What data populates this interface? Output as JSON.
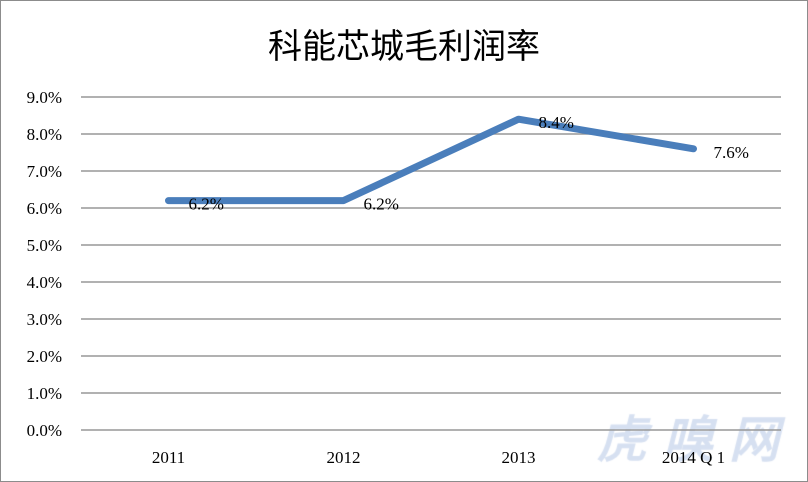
{
  "chart_data": {
    "type": "line",
    "title": "科能芯城毛利润率",
    "categories": [
      "2011",
      "2012",
      "2013",
      "2014Q1"
    ],
    "category_labels": [
      "2011",
      "2012",
      "2013",
      "2014 Q 1"
    ],
    "series": [
      {
        "values": [
          6.2,
          6.2,
          8.4,
          7.6
        ],
        "color": "#4a7ebb"
      }
    ],
    "data_labels": [
      "6.2%",
      "6.2%",
      "8.4%",
      "7.6%"
    ],
    "ylim": [
      0,
      9
    ],
    "yticks": [
      "0.0%",
      "1.0%",
      "2.0%",
      "3.0%",
      "4.0%",
      "5.0%",
      "6.0%",
      "7.0%",
      "8.0%",
      "9.0%"
    ],
    "grid": true,
    "legend": "none"
  },
  "watermark": "虎嗅网"
}
